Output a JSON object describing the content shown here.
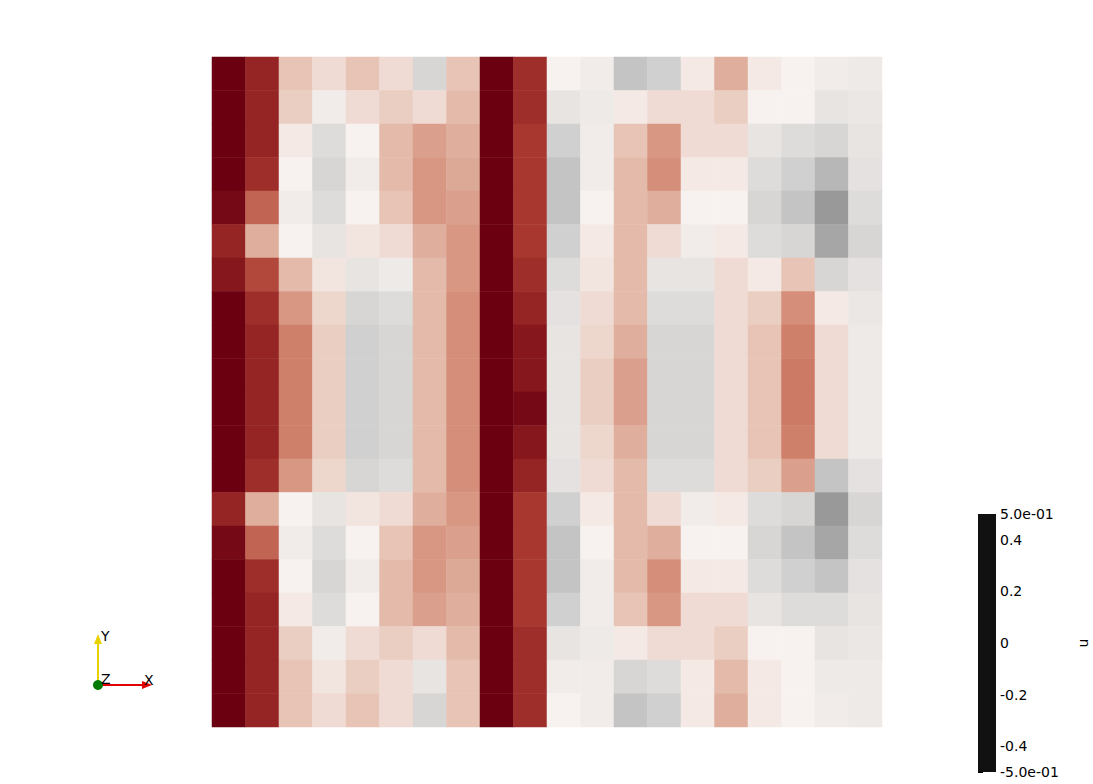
{
  "chart_data": {
    "type": "heatmap",
    "tick_labels": false,
    "x": [
      0.025,
      0.075,
      0.125,
      0.175,
      0.225,
      0.275,
      0.325,
      0.375,
      0.425,
      0.475,
      0.525,
      0.575,
      0.625,
      0.675,
      0.725,
      0.775,
      0.825,
      0.875,
      0.925,
      0.975
    ],
    "y": [
      0.975,
      0.925,
      0.875,
      0.825,
      0.775,
      0.725,
      0.675,
      0.625,
      0.575,
      0.525,
      0.475,
      0.425,
      0.375,
      0.325,
      0.275,
      0.225,
      0.175,
      0.125,
      0.075,
      0.025
    ],
    "values": [
      [
        0.5,
        0.42,
        0.1,
        0.05,
        0.1,
        0.05,
        -0.1,
        0.1,
        0.5,
        0.4,
        0.0,
        -0.02,
        -0.15,
        -0.12,
        0.02,
        0.15,
        0.02,
        0.0,
        -0.02,
        -0.03
      ],
      [
        0.5,
        0.42,
        0.08,
        -0.02,
        0.05,
        0.08,
        0.05,
        0.12,
        0.5,
        0.4,
        -0.05,
        -0.03,
        0.02,
        0.05,
        0.05,
        0.08,
        0.0,
        0.0,
        -0.05,
        -0.04
      ],
      [
        0.5,
        0.42,
        0.02,
        -0.08,
        0.0,
        0.12,
        0.18,
        0.15,
        0.5,
        0.38,
        -0.12,
        -0.02,
        0.1,
        0.2,
        0.05,
        0.05,
        -0.05,
        -0.08,
        -0.1,
        -0.05
      ],
      [
        0.5,
        0.4,
        0.0,
        -0.1,
        -0.02,
        0.12,
        0.2,
        0.16,
        0.5,
        0.38,
        -0.15,
        -0.02,
        0.12,
        0.22,
        0.02,
        0.02,
        -0.08,
        -0.12,
        -0.18,
        -0.06
      ],
      [
        0.48,
        0.3,
        -0.02,
        -0.08,
        0.0,
        0.1,
        0.2,
        0.18,
        0.5,
        0.38,
        -0.15,
        0.0,
        0.12,
        0.15,
        0.0,
        0.0,
        -0.1,
        -0.15,
        -0.25,
        -0.08
      ],
      [
        0.42,
        0.15,
        0.0,
        -0.05,
        0.03,
        0.05,
        0.15,
        0.2,
        0.5,
        0.38,
        -0.12,
        0.02,
        0.12,
        0.05,
        -0.02,
        0.02,
        -0.08,
        -0.1,
        -0.22,
        -0.1
      ],
      [
        0.45,
        0.35,
        0.12,
        0.03,
        -0.05,
        -0.03,
        0.12,
        0.2,
        0.5,
        0.4,
        -0.08,
        0.03,
        0.12,
        -0.05,
        -0.05,
        0.05,
        0.02,
        0.1,
        -0.1,
        -0.06
      ],
      [
        0.5,
        0.4,
        0.2,
        0.06,
        -0.1,
        -0.08,
        0.12,
        0.22,
        0.5,
        0.42,
        -0.06,
        0.05,
        0.12,
        -0.08,
        -0.08,
        0.05,
        0.08,
        0.22,
        0.02,
        -0.04
      ],
      [
        0.5,
        0.42,
        0.25,
        0.08,
        -0.12,
        -0.1,
        0.12,
        0.22,
        0.5,
        0.45,
        -0.05,
        0.06,
        0.15,
        -0.1,
        -0.1,
        0.05,
        0.1,
        0.25,
        0.05,
        -0.03
      ],
      [
        0.5,
        0.42,
        0.25,
        0.08,
        -0.12,
        -0.1,
        0.12,
        0.22,
        0.5,
        0.45,
        -0.05,
        0.08,
        0.18,
        -0.1,
        -0.1,
        0.05,
        0.1,
        0.26,
        0.05,
        -0.03
      ],
      [
        0.5,
        0.42,
        0.25,
        0.08,
        -0.12,
        -0.1,
        0.12,
        0.22,
        0.5,
        0.48,
        -0.05,
        0.08,
        0.18,
        -0.1,
        -0.1,
        0.05,
        0.1,
        0.26,
        0.05,
        -0.03
      ],
      [
        0.5,
        0.42,
        0.25,
        0.08,
        -0.12,
        -0.1,
        0.12,
        0.22,
        0.5,
        0.45,
        -0.05,
        0.06,
        0.15,
        -0.1,
        -0.1,
        0.05,
        0.1,
        0.25,
        0.05,
        -0.03
      ],
      [
        0.5,
        0.4,
        0.2,
        0.06,
        -0.1,
        -0.08,
        0.12,
        0.22,
        0.5,
        0.42,
        -0.06,
        0.05,
        0.12,
        -0.08,
        -0.08,
        0.05,
        0.08,
        0.18,
        -0.15,
        -0.06
      ],
      [
        0.42,
        0.15,
        0.0,
        -0.05,
        0.03,
        0.05,
        0.15,
        0.2,
        0.5,
        0.38,
        -0.12,
        0.02,
        0.12,
        0.05,
        -0.02,
        0.02,
        -0.08,
        -0.1,
        -0.25,
        -0.1
      ],
      [
        0.48,
        0.3,
        -0.02,
        -0.08,
        0.0,
        0.1,
        0.2,
        0.18,
        0.5,
        0.38,
        -0.15,
        0.0,
        0.12,
        0.15,
        0.0,
        0.0,
        -0.1,
        -0.15,
        -0.22,
        -0.08
      ],
      [
        0.5,
        0.4,
        0.0,
        -0.1,
        -0.02,
        0.12,
        0.2,
        0.16,
        0.5,
        0.38,
        -0.15,
        -0.02,
        0.12,
        0.22,
        0.02,
        0.02,
        -0.08,
        -0.12,
        -0.15,
        -0.06
      ],
      [
        0.5,
        0.42,
        0.02,
        -0.08,
        0.0,
        0.12,
        0.18,
        0.15,
        0.5,
        0.38,
        -0.12,
        -0.02,
        0.1,
        0.2,
        0.05,
        0.05,
        -0.05,
        -0.08,
        -0.08,
        -0.05
      ],
      [
        0.5,
        0.42,
        0.08,
        -0.02,
        0.05,
        0.08,
        0.05,
        0.12,
        0.5,
        0.4,
        -0.05,
        -0.03,
        0.02,
        0.05,
        0.05,
        0.08,
        0.0,
        0.0,
        -0.05,
        -0.04
      ],
      [
        0.5,
        0.42,
        0.1,
        0.03,
        0.08,
        0.05,
        -0.05,
        0.1,
        0.5,
        0.4,
        -0.02,
        -0.02,
        -0.1,
        -0.08,
        0.02,
        0.12,
        0.02,
        0.0,
        -0.03,
        -0.03
      ],
      [
        0.5,
        0.42,
        0.1,
        0.05,
        0.1,
        0.05,
        -0.1,
        0.1,
        0.5,
        0.4,
        0.0,
        -0.02,
        -0.15,
        -0.12,
        0.02,
        0.15,
        0.02,
        0.0,
        -0.02,
        -0.03
      ]
    ],
    "colorbar": {
      "title": "u",
      "range": [
        -0.5,
        0.5
      ],
      "ticks": [
        {
          "value": 0.5,
          "label": "5.0e-01"
        },
        0.4,
        0.2,
        0,
        -0.2,
        -0.4,
        {
          "value": -0.5,
          "label": "-5.0e-01"
        }
      ]
    },
    "axes_triad": {
      "x": "X",
      "y": "Y",
      "z": "Z"
    }
  }
}
